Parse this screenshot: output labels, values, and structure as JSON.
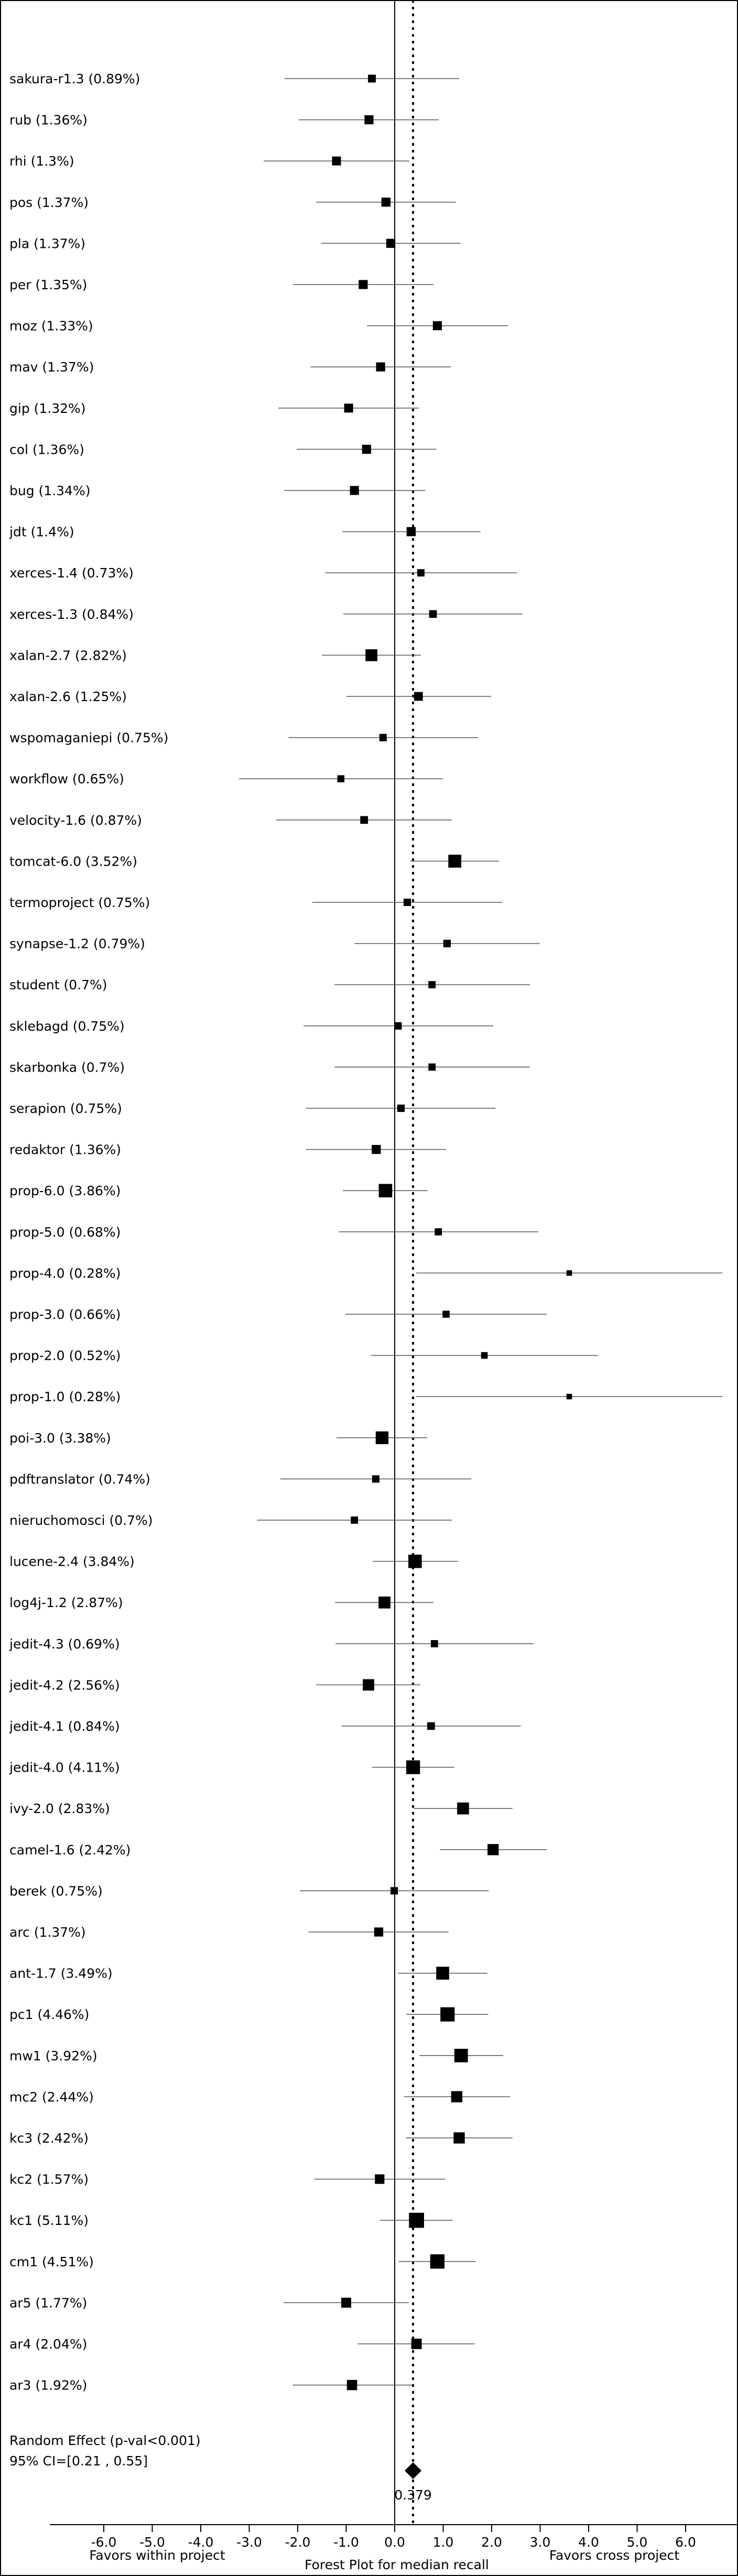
{
  "chart_data": {
    "type": "forest",
    "title": "Forest Plot for median recall",
    "left_label": "Favors within project",
    "right_label": "Favors cross project",
    "xlim": [
      -7.0,
      7.0
    ],
    "xticks": [
      -6.0,
      -5.0,
      -4.0,
      -3.0,
      -2.0,
      -1.0,
      0.0,
      1.0,
      2.0,
      3.0,
      4.0,
      5.0,
      6.0
    ],
    "xtick_labels": [
      "-6.0",
      "-5.0",
      "-4.0",
      "-3.0",
      "-2.0",
      "-1.0",
      "0.0",
      "1.0",
      "2.0",
      "3.0",
      "4.0",
      "5.0",
      "6.0"
    ],
    "reference_line": 0.0,
    "pooled_line": 0.379,
    "studies": [
      {
        "label": "sakura-r1.3 (0.89%)",
        "effect": -0.47,
        "ci": [
          -2.27,
          1.33
        ],
        "weight": 0.89
      },
      {
        "label": "rub (1.36%)",
        "effect": -0.53,
        "ci": [
          -1.98,
          0.91
        ],
        "weight": 1.36
      },
      {
        "label": "rhi (1.3%)",
        "effect": -1.2,
        "ci": [
          -2.7,
          0.3
        ],
        "weight": 1.3
      },
      {
        "label": "pos (1.37%)",
        "effect": -0.18,
        "ci": [
          -1.62,
          1.26
        ],
        "weight": 1.37
      },
      {
        "label": "pla (1.37%)",
        "effect": -0.08,
        "ci": [
          -1.52,
          1.36
        ],
        "weight": 1.37
      },
      {
        "label": "per (1.35%)",
        "effect": -0.65,
        "ci": [
          -2.1,
          0.8
        ],
        "weight": 1.35
      },
      {
        "label": "moz (1.33%)",
        "effect": 0.88,
        "ci": [
          -0.57,
          2.34
        ],
        "weight": 1.33
      },
      {
        "label": "mav (1.37%)",
        "effect": -0.29,
        "ci": [
          -1.74,
          1.16
        ],
        "weight": 1.37
      },
      {
        "label": "gip (1.32%)",
        "effect": -0.95,
        "ci": [
          -2.4,
          0.5
        ],
        "weight": 1.32
      },
      {
        "label": "col (1.36%)",
        "effect": -0.58,
        "ci": [
          -2.02,
          0.86
        ],
        "weight": 1.36
      },
      {
        "label": "bug (1.34%)",
        "effect": -0.83,
        "ci": [
          -2.28,
          0.63
        ],
        "weight": 1.34
      },
      {
        "label": "jdt (1.4%)",
        "effect": 0.34,
        "ci": [
          -1.08,
          1.77
        ],
        "weight": 1.4
      },
      {
        "label": "xerces-1.4 (0.73%)",
        "effect": 0.54,
        "ci": [
          -1.43,
          2.52
        ],
        "weight": 0.73
      },
      {
        "label": "xerces-1.3 (0.84%)",
        "effect": 0.79,
        "ci": [
          -1.06,
          2.64
        ],
        "weight": 0.84
      },
      {
        "label": "xalan-2.7 (2.82%)",
        "effect": -0.48,
        "ci": [
          -1.5,
          0.54
        ],
        "weight": 2.82
      },
      {
        "label": "xalan-2.6 (1.25%)",
        "effect": 0.49,
        "ci": [
          -1.0,
          1.99
        ],
        "weight": 1.25
      },
      {
        "label": "wspomaganiepi (0.75%)",
        "effect": -0.24,
        "ci": [
          -2.19,
          1.72
        ],
        "weight": 0.75
      },
      {
        "label": "workflow (0.65%)",
        "effect": -1.11,
        "ci": [
          -3.21,
          0.99
        ],
        "weight": 0.65
      },
      {
        "label": "velocity-1.6 (0.87%)",
        "effect": -0.63,
        "ci": [
          -2.45,
          1.18
        ],
        "weight": 0.87
      },
      {
        "label": "tomcat-6.0 (3.52%)",
        "effect": 1.24,
        "ci": [
          0.32,
          2.15
        ],
        "weight": 3.52
      },
      {
        "label": "termoproject (0.75%)",
        "effect": 0.26,
        "ci": [
          -1.7,
          2.22
        ],
        "weight": 0.75
      },
      {
        "label": "synapse-1.2 (0.79%)",
        "effect": 1.08,
        "ci": [
          -0.83,
          2.99
        ],
        "weight": 0.79
      },
      {
        "label": "student (0.7%)",
        "effect": 0.77,
        "ci": [
          -1.24,
          2.79
        ],
        "weight": 0.7
      },
      {
        "label": "sklebagd (0.75%)",
        "effect": 0.07,
        "ci": [
          -1.88,
          2.03
        ],
        "weight": 0.75
      },
      {
        "label": "skarbonka (0.7%)",
        "effect": 0.77,
        "ci": [
          -1.24,
          2.79
        ],
        "weight": 0.7
      },
      {
        "label": "serapion (0.75%)",
        "effect": 0.13,
        "ci": [
          -1.83,
          2.08
        ],
        "weight": 0.75
      },
      {
        "label": "redaktor (1.36%)",
        "effect": -0.38,
        "ci": [
          -1.83,
          1.06
        ],
        "weight": 1.36
      },
      {
        "label": "prop-6.0 (3.86%)",
        "effect": -0.19,
        "ci": [
          -1.07,
          0.68
        ],
        "weight": 3.86
      },
      {
        "label": "prop-5.0 (0.68%)",
        "effect": 0.9,
        "ci": [
          -1.15,
          2.96
        ],
        "weight": 0.68
      },
      {
        "label": "prop-4.0 (0.28%)",
        "effect": 3.6,
        "ci": [
          0.44,
          6.76
        ],
        "weight": 0.28
      },
      {
        "label": "prop-3.0 (0.66%)",
        "effect": 1.06,
        "ci": [
          -1.02,
          3.14
        ],
        "weight": 0.66
      },
      {
        "label": "prop-2.0 (0.52%)",
        "effect": 1.85,
        "ci": [
          -0.49,
          4.19
        ],
        "weight": 0.52
      },
      {
        "label": "prop-1.0 (0.28%)",
        "effect": 3.6,
        "ci": [
          0.44,
          6.76
        ],
        "weight": 0.28
      },
      {
        "label": "poi-3.0 (3.38%)",
        "effect": -0.26,
        "ci": [
          -1.2,
          0.67
        ],
        "weight": 3.38
      },
      {
        "label": "pdftranslator (0.74%)",
        "effect": -0.39,
        "ci": [
          -2.36,
          1.58
        ],
        "weight": 0.74
      },
      {
        "label": "nieruchomosci (0.7%)",
        "effect": -0.83,
        "ci": [
          -2.84,
          1.18
        ],
        "weight": 0.7
      },
      {
        "label": "lucene-2.4 (3.84%)",
        "effect": 0.42,
        "ci": [
          -0.45,
          1.3
        ],
        "weight": 3.84
      },
      {
        "label": "log4j-1.2 (2.87%)",
        "effect": -0.21,
        "ci": [
          -1.23,
          0.8
        ],
        "weight": 2.87
      },
      {
        "label": "jedit-4.3 (0.69%)",
        "effect": 0.82,
        "ci": [
          -1.22,
          2.86
        ],
        "weight": 0.69
      },
      {
        "label": "jedit-4.2 (2.56%)",
        "effect": -0.54,
        "ci": [
          -1.62,
          0.53
        ],
        "weight": 2.56
      },
      {
        "label": "jedit-4.1 (0.84%)",
        "effect": 0.75,
        "ci": [
          -1.1,
          2.6
        ],
        "weight": 0.84
      },
      {
        "label": "jedit-4.0 (4.11%)",
        "effect": 0.38,
        "ci": [
          -0.47,
          1.23
        ],
        "weight": 4.11
      },
      {
        "label": "ivy-2.0 (2.83%)",
        "effect": 1.41,
        "ci": [
          0.39,
          2.43
        ],
        "weight": 2.83
      },
      {
        "label": "camel-1.6 (2.42%)",
        "effect": 2.03,
        "ci": [
          0.93,
          3.14
        ],
        "weight": 2.42
      },
      {
        "label": "berek (0.75%)",
        "effect": -0.01,
        "ci": [
          -1.96,
          1.94
        ],
        "weight": 0.75
      },
      {
        "label": "arc (1.37%)",
        "effect": -0.33,
        "ci": [
          -1.77,
          1.11
        ],
        "weight": 1.37
      },
      {
        "label": "ant-1.7 (3.49%)",
        "effect": 0.99,
        "ci": [
          0.07,
          1.91
        ],
        "weight": 3.49
      },
      {
        "label": "pc1 (4.46%)",
        "effect": 1.09,
        "ci": [
          0.24,
          1.93
        ],
        "weight": 4.46
      },
      {
        "label": "mw1 (3.92%)",
        "effect": 1.37,
        "ci": [
          0.51,
          2.24
        ],
        "weight": 3.92
      },
      {
        "label": "mc2 (2.44%)",
        "effect": 1.28,
        "ci": [
          0.19,
          2.38
        ],
        "weight": 2.44
      },
      {
        "label": "kc3 (2.42%)",
        "effect": 1.33,
        "ci": [
          0.23,
          2.43
        ],
        "weight": 2.42
      },
      {
        "label": "kc2 (1.57%)",
        "effect": -0.31,
        "ci": [
          -1.66,
          1.04
        ],
        "weight": 1.57
      },
      {
        "label": "kc1 (5.11%)",
        "effect": 0.45,
        "ci": [
          -0.3,
          1.2
        ],
        "weight": 5.11
      },
      {
        "label": "cm1 (4.51%)",
        "effect": 0.88,
        "ci": [
          0.08,
          1.67
        ],
        "weight": 4.51
      },
      {
        "label": "ar5 (1.77%)",
        "effect": -1.0,
        "ci": [
          -2.29,
          0.29
        ],
        "weight": 1.77
      },
      {
        "label": "ar4 (2.04%)",
        "effect": 0.45,
        "ci": [
          -0.76,
          1.65
        ],
        "weight": 2.04
      },
      {
        "label": "ar3 (1.92%)",
        "effect": -0.88,
        "ci": [
          -2.1,
          0.35
        ],
        "weight": 1.92
      }
    ],
    "pooled": {
      "label": "Random Effect (p-val<0.001)",
      "ci_text": "95% CI=[0.21 , 0.55]",
      "effect": 0.379,
      "ci": [
        0.21,
        0.55
      ],
      "value_label": "0.379"
    }
  }
}
